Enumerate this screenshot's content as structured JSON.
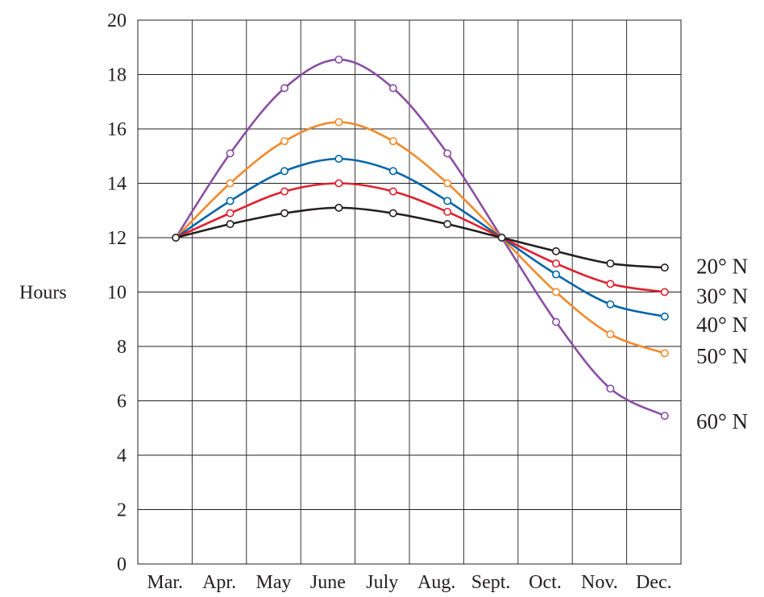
{
  "chart_data": {
    "type": "line",
    "ylabel": "Hours",
    "xlabel": "",
    "title": "",
    "ylim": [
      0,
      20
    ],
    "yticks": [
      0,
      2,
      4,
      6,
      8,
      10,
      12,
      14,
      16,
      18,
      20
    ],
    "categories": [
      "Mar.",
      "Apr.",
      "May",
      "June",
      "July",
      "Aug.",
      "Sept.",
      "Oct.",
      "Nov.",
      "Dec."
    ],
    "grid": true,
    "legend_position": "right",
    "x": [
      0.7,
      1.7,
      2.7,
      3.7,
      4.7,
      5.7,
      6.7,
      7.7,
      8.7,
      9.7
    ],
    "series": [
      {
        "name": "20° N",
        "color": "#231f20",
        "values": [
          12.0,
          12.5,
          12.9,
          13.1,
          12.9,
          12.5,
          12.0,
          11.5,
          11.05,
          10.9
        ]
      },
      {
        "name": "30° N",
        "color": "#e0202e",
        "values": [
          12.0,
          12.9,
          13.7,
          14.0,
          13.7,
          12.95,
          12.0,
          11.05,
          10.3,
          10.0
        ]
      },
      {
        "name": "40° N",
        "color": "#0065a8",
        "values": [
          12.0,
          13.35,
          14.45,
          14.9,
          14.45,
          13.35,
          12.0,
          10.65,
          9.55,
          9.1
        ]
      },
      {
        "name": "50° N",
        "color": "#f18a2b",
        "values": [
          12.0,
          14.0,
          15.55,
          16.25,
          15.55,
          14.0,
          12.0,
          10.0,
          8.45,
          7.75
        ]
      },
      {
        "name": "60° N",
        "color": "#8a4fa3",
        "values": [
          12.0,
          15.1,
          17.5,
          18.55,
          17.5,
          15.1,
          12.0,
          8.9,
          6.45,
          5.45
        ]
      }
    ]
  }
}
